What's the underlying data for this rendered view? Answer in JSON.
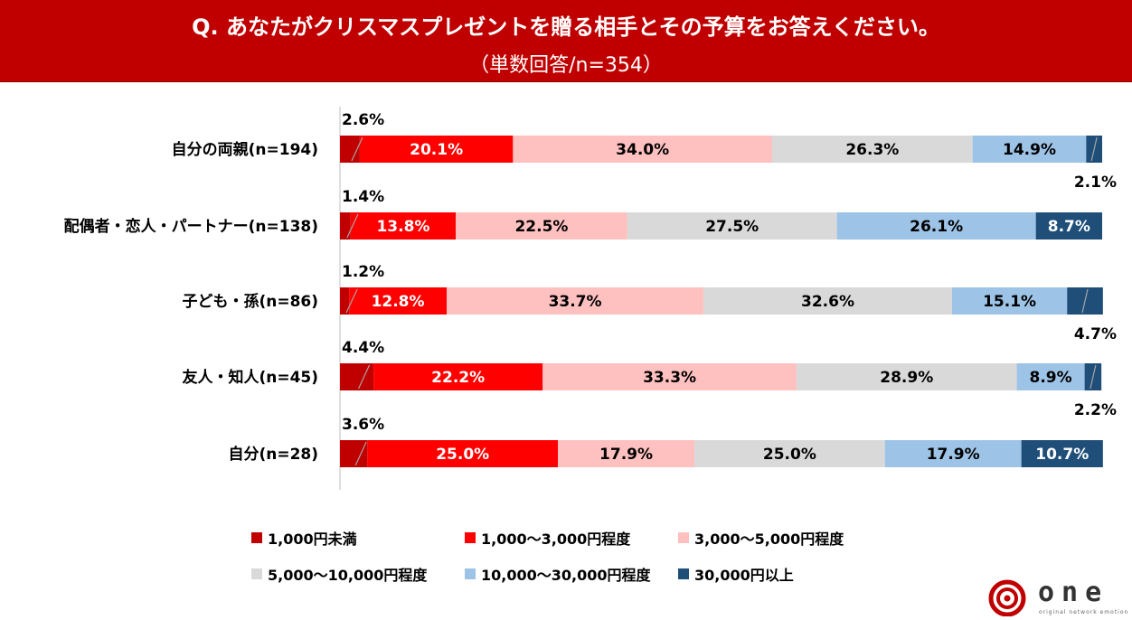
{
  "header": {
    "title": "Q. あなたがクリスマスプレゼントを贈る相手とその予算をお答えください。",
    "subtitle": "（単数回答/n=354）"
  },
  "colors": [
    "#c00000",
    "#ff0000",
    "#ffc0c0",
    "#d9d9d9",
    "#9dc3e6",
    "#1f4e79"
  ],
  "chart_data": {
    "type": "bar",
    "orientation": "horizontal",
    "stacked": true,
    "normalized": true,
    "xlim": [
      0,
      100
    ],
    "categories": [
      "自分の両親(n=194)",
      "配偶者・恋人・パートナー(n=138)",
      "子ども・孫(n=86)",
      "友人・知人(n=45)",
      "自分(n=28)"
    ],
    "series": [
      {
        "name": "1,000円未満",
        "values": [
          2.6,
          1.4,
          1.2,
          4.4,
          3.6
        ]
      },
      {
        "name": "1,000～3,000円程度",
        "values": [
          20.1,
          13.8,
          12.8,
          22.2,
          25.0
        ]
      },
      {
        "name": "3,000～5,000円程度",
        "values": [
          34.0,
          22.5,
          33.7,
          33.3,
          17.9
        ]
      },
      {
        "name": "5,000～10,000円程度",
        "values": [
          26.3,
          27.5,
          32.6,
          28.9,
          25.0
        ]
      },
      {
        "name": "10,000～30,000円程度",
        "values": [
          14.9,
          26.1,
          15.1,
          8.9,
          17.9
        ]
      },
      {
        "name": "30,000円以上",
        "values": [
          2.1,
          8.7,
          4.7,
          2.2,
          10.7
        ]
      }
    ],
    "labels": [
      [
        "2.6%",
        "20.1%",
        "34.0%",
        "26.3%",
        "14.9%",
        "2.1%"
      ],
      [
        "1.4%",
        "13.8%",
        "22.5%",
        "27.5%",
        "26.1%",
        "8.7%"
      ],
      [
        "1.2%",
        "12.8%",
        "33.7%",
        "32.6%",
        "15.1%",
        "4.7%"
      ],
      [
        "4.4%",
        "22.2%",
        "33.3%",
        "28.9%",
        "8.9%",
        "2.2%"
      ],
      [
        "3.6%",
        "25.0%",
        "17.9%",
        "25.0%",
        "17.9%",
        "10.7%"
      ]
    ],
    "legend_position": "bottom"
  },
  "brand": {
    "name": "one",
    "tagline": "original network emotion"
  }
}
